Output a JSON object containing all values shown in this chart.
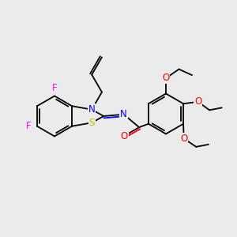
{
  "bg_color": "#ebebeb",
  "atom_colors": {
    "N": "#0000ff",
    "S": "#bbbb00",
    "O": "#ff0000",
    "F": "#ff00ff",
    "C": "#000000"
  },
  "figsize": [
    3.0,
    3.0
  ],
  "dpi": 100,
  "lw": 1.3,
  "fs": 8.5
}
